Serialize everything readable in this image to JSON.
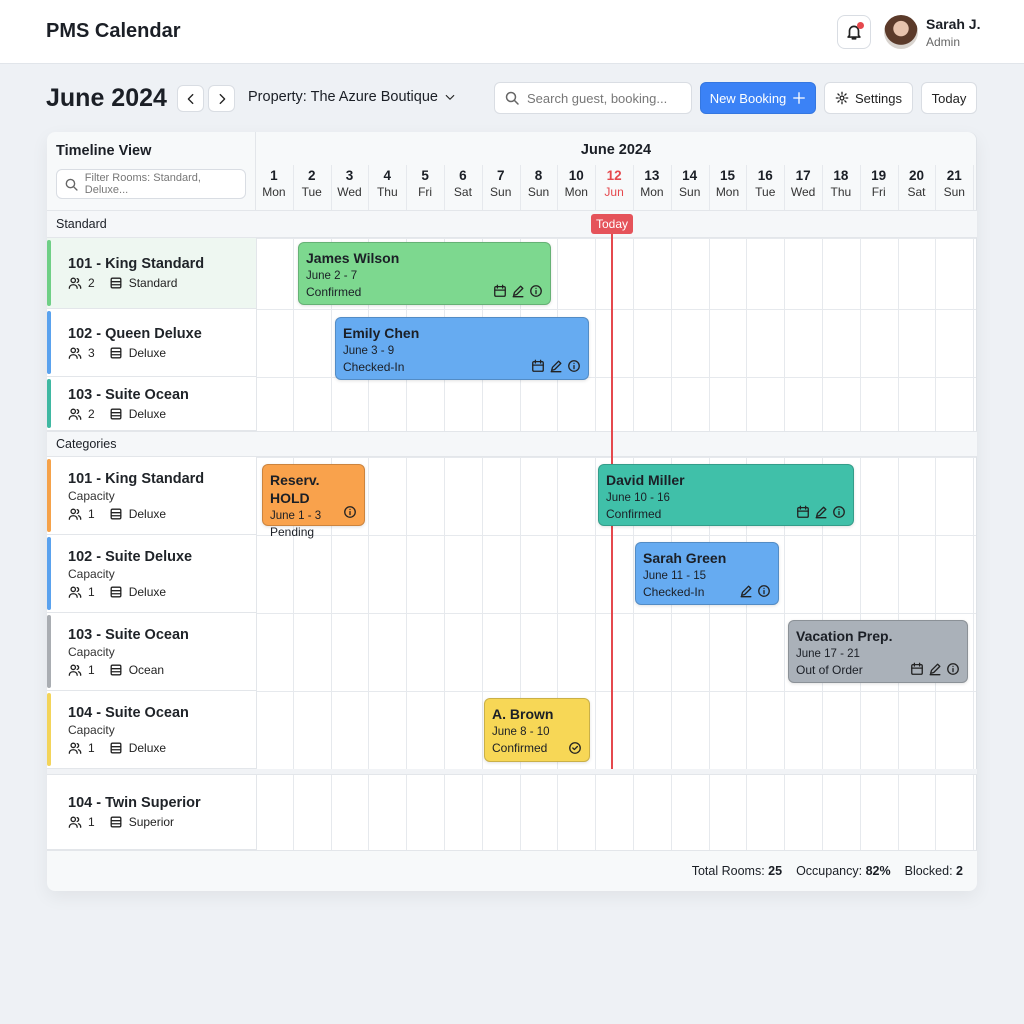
{
  "header": {
    "title": "PMS Calendar",
    "user_name": "Sarah J.",
    "user_role": "Admin"
  },
  "toolbar": {
    "month": "June 2024",
    "property": "Property: The Azure Boutique",
    "search_placeholder": "Search guest, booking...",
    "new_booking": "New Booking",
    "settings": "Settings",
    "today": "Today"
  },
  "timeline": {
    "title": "Timeline View",
    "filter_placeholder": "Filter Rooms: Standard, Deluxe...",
    "month": "June 2024",
    "today_tag": "Today",
    "days": [
      {
        "num": 1,
        "dow": "Mon"
      },
      {
        "num": 2,
        "dow": "Tue"
      },
      {
        "num": 3,
        "dow": "Wed"
      },
      {
        "num": 4,
        "dow": "Thu"
      },
      {
        "num": 5,
        "dow": "Fri"
      },
      {
        "num": 6,
        "dow": "Sat"
      },
      {
        "num": 7,
        "dow": "Sun"
      },
      {
        "num": 8,
        "dow": "Sun"
      },
      {
        "num": 10,
        "dow": "Mon"
      },
      {
        "num": 12,
        "dow": "Jun"
      },
      {
        "num": 13,
        "dow": "Mon"
      },
      {
        "num": 14,
        "dow": "Sun"
      },
      {
        "num": 15,
        "dow": "Mon"
      },
      {
        "num": 16,
        "dow": "Tue"
      },
      {
        "num": 17,
        "dow": "Wed"
      },
      {
        "num": 18,
        "dow": "Thu"
      },
      {
        "num": 19,
        "dow": "Fri"
      },
      {
        "num": 20,
        "dow": "Sat"
      },
      {
        "num": 21,
        "dow": "Sun"
      }
    ],
    "groups": [
      "Standard",
      "Categories"
    ],
    "rooms": [
      {
        "name": "101 - King Standard",
        "guests": 2,
        "type": "Standard"
      },
      {
        "name": "102 - Queen Deluxe",
        "guests": 3,
        "type": "Deluxe"
      },
      {
        "name": "103 - Suite Ocean",
        "guests": 2,
        "type": "Deluxe"
      },
      {
        "name": "101 - King Standard",
        "capacity": "Capacity",
        "guests": 1,
        "type": "Deluxe"
      },
      {
        "name": "102 - Suite Deluxe",
        "capacity": "Capacity",
        "guests": 1,
        "type": "Deluxe"
      },
      {
        "name": "103 - Suite Ocean",
        "capacity": "Capacity",
        "guests": 1,
        "type": "Ocean"
      },
      {
        "name": "104 - Suite Ocean",
        "capacity": "Capacity",
        "guests": 1,
        "type": "Deluxe"
      },
      {
        "name": "104 - Twin Superior",
        "guests": 1,
        "type": "Superior"
      }
    ],
    "bookings": [
      {
        "name": "James Wilson",
        "dates": "June 2 - 7",
        "status": "Confirmed"
      },
      {
        "name": "Emily Chen",
        "dates": "June 3 - 9",
        "status": "Checked-In"
      },
      {
        "name": "Reserv. HOLD",
        "dates": "June 1 - 3",
        "status": "Pending"
      },
      {
        "name": "David Miller",
        "dates": "June 10 - 16",
        "status": "Confirmed"
      },
      {
        "name": "Sarah Green",
        "dates": "June 11 - 15",
        "status": "Checked-In"
      },
      {
        "name": "Vacation Prep.",
        "dates": "June 17 - 21",
        "status": "Out of Order"
      },
      {
        "name": "A. Brown",
        "dates": "June 8 - 10",
        "status": "Confirmed"
      }
    ]
  },
  "footer": {
    "total_label": "Total Rooms:",
    "total": 25,
    "occupancy_label": "Occupancy:",
    "occupancy": "82%",
    "blocked_label": "Blocked:",
    "blocked": 2
  }
}
